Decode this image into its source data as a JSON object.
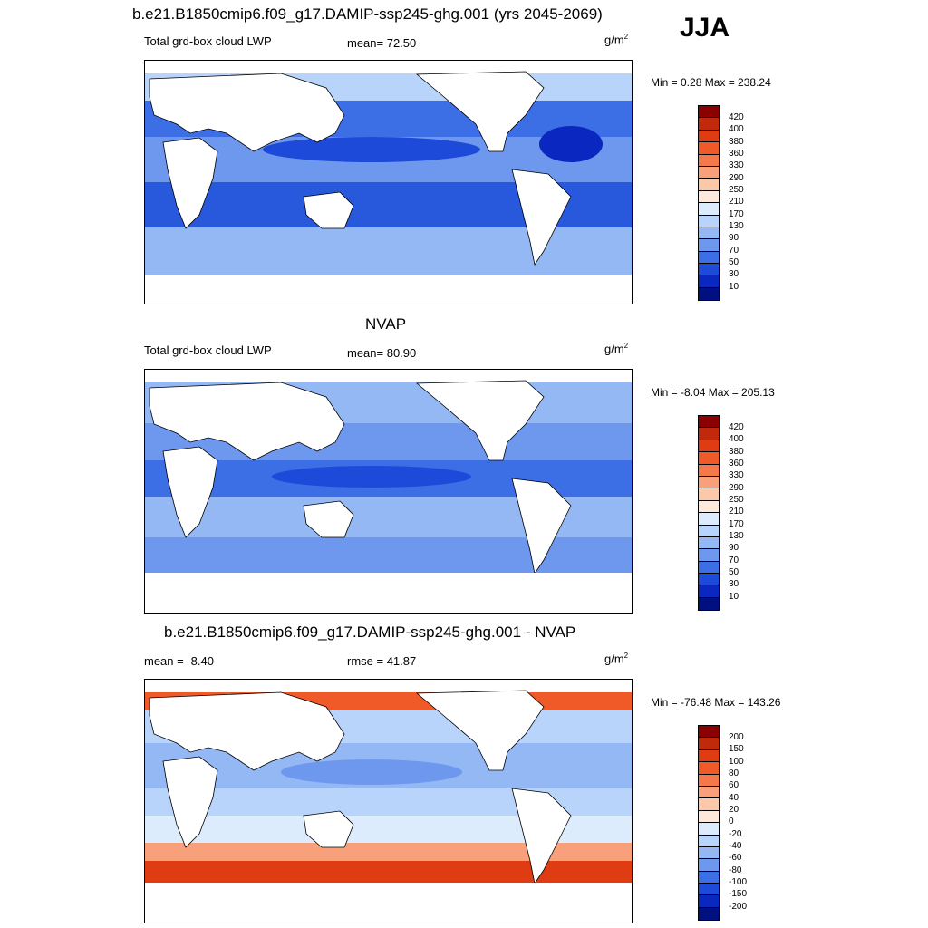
{
  "season": "JJA",
  "panels": [
    {
      "title": "b.e21.B1850cmip6.f09_g17.DAMIP-ssp245-ghg.001 (yrs 2045-2069)",
      "left_label": "Total grd-box cloud LWP",
      "center_label": "mean=  72.50",
      "units": "g/m",
      "units_sup": "2",
      "minmax": "Min =   0.28 Max = 238.24",
      "colorbar": {
        "labels": [
          "420",
          "400",
          "380",
          "360",
          "330",
          "290",
          "250",
          "210",
          "170",
          "130",
          "90",
          "70",
          "50",
          "30",
          "10"
        ],
        "colors": [
          "#8b0000",
          "#c02a0a",
          "#e03c14",
          "#f05a28",
          "#f4784a",
          "#f8a07a",
          "#fcc8aa",
          "#fde8dc",
          "#dcecfc",
          "#b8d4fa",
          "#94b8f4",
          "#6e98ee",
          "#3c6ee6",
          "#1e4ada",
          "#0a28c0",
          "#001080"
        ]
      }
    },
    {
      "title": "NVAP",
      "left_label": "Total grd-box cloud LWP",
      "center_label": "mean=  80.90",
      "units": "g/m",
      "units_sup": "2",
      "minmax": "Min =  -8.04 Max = 205.13",
      "colorbar": {
        "labels": [
          "420",
          "400",
          "380",
          "360",
          "330",
          "290",
          "250",
          "210",
          "170",
          "130",
          "90",
          "70",
          "50",
          "30",
          "10"
        ],
        "colors": [
          "#8b0000",
          "#c02a0a",
          "#e03c14",
          "#f05a28",
          "#f4784a",
          "#f8a07a",
          "#fcc8aa",
          "#fde8dc",
          "#dcecfc",
          "#b8d4fa",
          "#94b8f4",
          "#6e98ee",
          "#3c6ee6",
          "#1e4ada",
          "#0a28c0",
          "#001080"
        ]
      }
    },
    {
      "title": "b.e21.B1850cmip6.f09_g17.DAMIP-ssp245-ghg.001 - NVAP",
      "left_label": "mean =  -8.40",
      "center_label": "rmse =  41.87",
      "units": "g/m",
      "units_sup": "2",
      "minmax": "Min = -76.48 Max = 143.26",
      "colorbar": {
        "labels": [
          "200",
          "150",
          "100",
          "80",
          "60",
          "40",
          "20",
          "0",
          "-20",
          "-40",
          "-60",
          "-80",
          "-100",
          "-150",
          "-200"
        ],
        "colors": [
          "#8b0000",
          "#c02a0a",
          "#e03c14",
          "#f05a28",
          "#f4784a",
          "#f8a07a",
          "#fcc8aa",
          "#fde8dc",
          "#dcecfc",
          "#b8d4fa",
          "#94b8f4",
          "#6e98ee",
          "#3c6ee6",
          "#1e4ada",
          "#0a28c0",
          "#001080"
        ]
      }
    }
  ]
}
